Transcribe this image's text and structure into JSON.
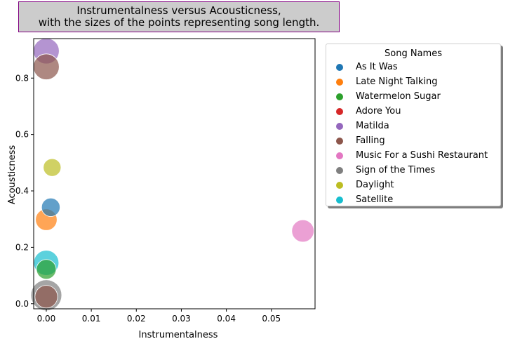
{
  "chart_data": {
    "type": "scatter",
    "title_lines": [
      "Instrumentalness versus Acousticness,",
      "with the sizes of the points representing song length."
    ],
    "xlabel": "Instrumentalness",
    "ylabel": "Acousticness",
    "xlim": [
      -0.0028,
      0.0597
    ],
    "ylim": [
      -0.018,
      0.94
    ],
    "xticks": [
      "0.00",
      "0.01",
      "0.02",
      "0.03",
      "0.04",
      "0.05"
    ],
    "yticks": [
      "0.0",
      "0.2",
      "0.4",
      "0.6",
      "0.8"
    ],
    "grid": false,
    "legend": {
      "title": "Song Names",
      "placement": "outside-right"
    },
    "series": [
      {
        "name": "As It Was",
        "color": "#1f77b4",
        "points": [
          {
            "x": 0.001,
            "y": 0.342,
            "size": 0.2
          }
        ]
      },
      {
        "name": "Late Night Talking",
        "color": "#ff7f0e",
        "points": [
          {
            "x": 0.0,
            "y": 0.298,
            "size": 0.34
          }
        ]
      },
      {
        "name": "Watermelon Sugar",
        "color": "#2ca02c",
        "points": [
          {
            "x": 0.0,
            "y": 0.122,
            "size": 0.25
          }
        ]
      },
      {
        "name": "Adore You",
        "color": "#d62728",
        "points": []
      },
      {
        "name": "Matilda",
        "color": "#9467bd",
        "points": [
          {
            "x": 0.0,
            "y": 0.896,
            "size": 0.6
          }
        ]
      },
      {
        "name": "Falling",
        "color": "#8c564b",
        "points": [
          {
            "x": 0.0,
            "y": 0.84,
            "size": 0.6
          },
          {
            "x": 0.0,
            "y": 0.025,
            "size": 0.4
          }
        ]
      },
      {
        "name": "Music For a Sushi Restaurant",
        "color": "#e377c2",
        "points": [
          {
            "x": 0.057,
            "y": 0.258,
            "size": 0.38
          }
        ]
      },
      {
        "name": "Sign of the Times",
        "color": "#7f7f7f",
        "points": [
          {
            "x": 0.0,
            "y": 0.03,
            "size": 1.0
          }
        ]
      },
      {
        "name": "Daylight",
        "color": "#bcbd22",
        "points": [
          {
            "x": 0.0013,
            "y": 0.483,
            "size": 0.17
          }
        ]
      },
      {
        "name": "Satellite",
        "color": "#17becf",
        "points": [
          {
            "x": 0.0,
            "y": 0.145,
            "size": 0.55
          }
        ]
      }
    ]
  }
}
